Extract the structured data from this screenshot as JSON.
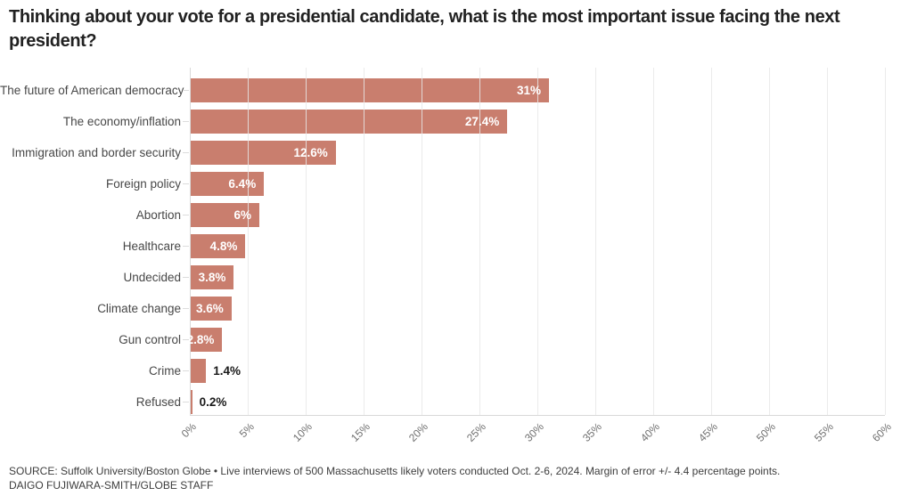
{
  "title": "Thinking about your vote for a presidential candidate, what is the most important issue facing the next president?",
  "chart_data": {
    "type": "bar",
    "orientation": "horizontal",
    "categories": [
      "The future of American democracy",
      "The economy/inflation",
      "Immigration and border security",
      "Foreign policy",
      "Abortion",
      "Healthcare",
      "Undecided",
      "Climate change",
      "Gun control",
      "Crime",
      "Refused"
    ],
    "values": [
      31,
      27.4,
      12.6,
      6.4,
      6,
      4.8,
      3.8,
      3.6,
      2.8,
      1.4,
      0.2
    ],
    "value_labels": [
      "31%",
      "27.4%",
      "12.6%",
      "6.4%",
      "6%",
      "4.8%",
      "3.8%",
      "3.6%",
      "2.8%",
      "1.4%",
      "0.2%"
    ],
    "xlabel": "",
    "ylabel": "",
    "xlim": [
      0,
      60
    ],
    "xtick_labels": [
      "0%",
      "5%",
      "10%",
      "15%",
      "20%",
      "25%",
      "30%",
      "35%",
      "40%",
      "45%",
      "50%",
      "55%",
      "60%"
    ],
    "grid": "vertical",
    "legend": "none"
  },
  "colors": {
    "bar": "#c97e6e",
    "value_inside": "#ffffff",
    "value_outside": "#1a1a1a",
    "gridline": "#e7e7e7",
    "category_text": "#474747",
    "axis_text": "#6f6f6f",
    "title_text": "#212121",
    "footer_text": "#3d3d3d"
  },
  "footer": {
    "source": "SOURCE: Suffolk University/Boston Globe • Live interviews of 500 Massachusetts likely voters conducted Oct. 2-6, 2024. Margin of error +/- 4.4 percentage points.",
    "credit": "DAIGO FUJIWARA-SMITH/GLOBE STAFF"
  }
}
